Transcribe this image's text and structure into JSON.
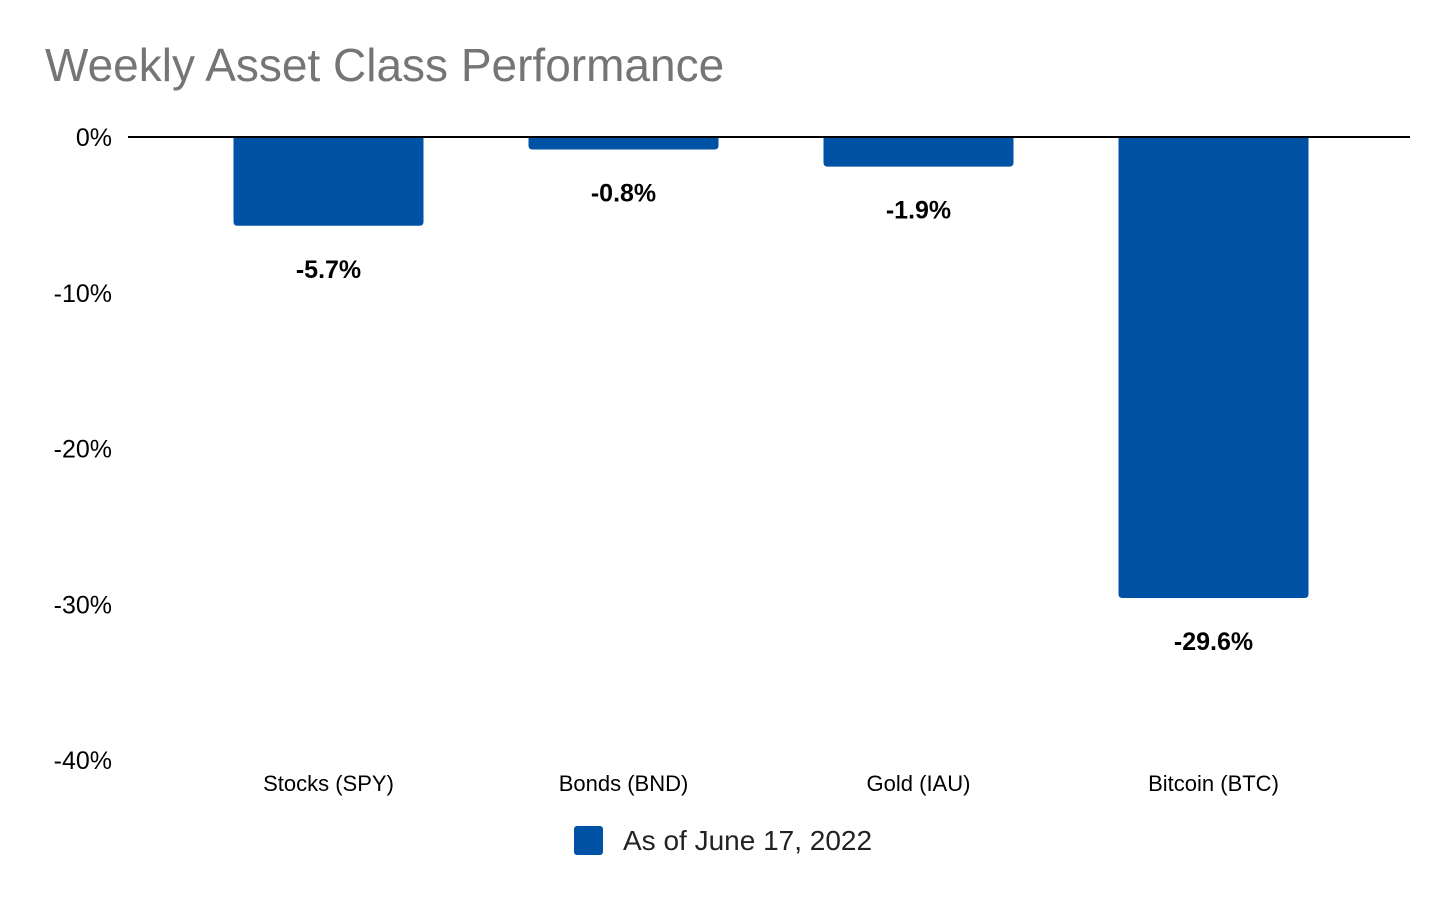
{
  "chart_data": {
    "type": "bar",
    "title": "Weekly Asset Class Performance",
    "categories": [
      "Stocks (SPY)",
      "Bonds (BND)",
      "Gold (IAU)",
      "Bitcoin (BTC)"
    ],
    "series": [
      {
        "name": "As of June 17, 2022",
        "values": [
          -5.7,
          -0.8,
          -1.9,
          -29.6
        ],
        "labels": [
          "-5.7%",
          "-0.8%",
          "-1.9%",
          "-29.6%"
        ]
      }
    ],
    "ylim": [
      -40,
      0
    ],
    "yticks": [
      0,
      -10,
      -20,
      -30,
      -40
    ],
    "ytick_labels": [
      "0%",
      "-10%",
      "-20%",
      "-30%",
      "-40%"
    ],
    "grid": false,
    "legend_position": "bottom",
    "colors": {
      "bar": "#0052a5",
      "title": "#757575",
      "axis": "#000000"
    }
  }
}
